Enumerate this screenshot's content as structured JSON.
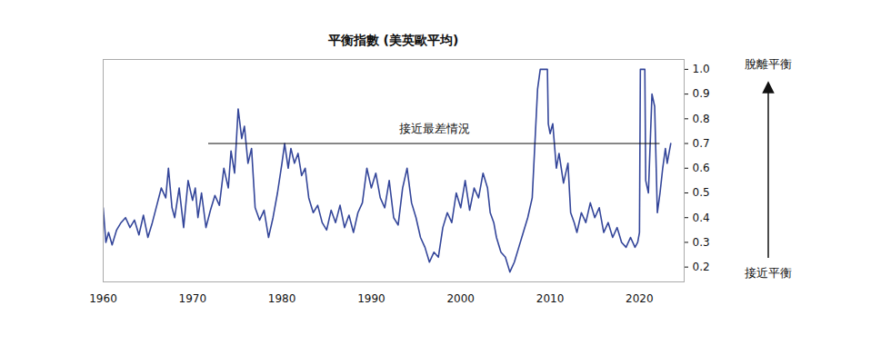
{
  "chart_data": {
    "type": "line",
    "title": "平衡指數 (美英歐平均)",
    "x": [
      1960,
      1960.3,
      1960.6,
      1961,
      1961.5,
      1962,
      1962.5,
      1963,
      1963.5,
      1964,
      1964.5,
      1965,
      1965.5,
      1966,
      1966.5,
      1967,
      1967.3,
      1967.7,
      1968,
      1968.5,
      1969,
      1969.5,
      1970,
      1970.3,
      1970.6,
      1971,
      1971.5,
      1972,
      1972.5,
      1973,
      1973.5,
      1974,
      1974.3,
      1974.7,
      1975.1,
      1975.5,
      1975.8,
      1976.2,
      1976.6,
      1977,
      1977.5,
      1978,
      1978.5,
      1979,
      1979.5,
      1980,
      1980.3,
      1980.7,
      1981,
      1981.4,
      1981.8,
      1982.2,
      1982.6,
      1983,
      1983.5,
      1984,
      1984.5,
      1985,
      1985.5,
      1986,
      1986.5,
      1987,
      1987.5,
      1988,
      1988.5,
      1989,
      1989.5,
      1990,
      1990.5,
      1991,
      1991.5,
      1992,
      1992.5,
      1993,
      1993.5,
      1994,
      1994.5,
      1995,
      1995.5,
      1996,
      1996.5,
      1997,
      1997.5,
      1998,
      1998.5,
      1999,
      1999.5,
      2000,
      2000.5,
      2001,
      2001.5,
      2002,
      2002.5,
      2003,
      2003.3,
      2003.7,
      2004,
      2004.5,
      2005,
      2005.5,
      2006,
      2006.5,
      2007,
      2007.5,
      2008,
      2008.3,
      2008.6,
      2008.9,
      2009.7,
      2009.8,
      2010,
      2010.3,
      2010.7,
      2011,
      2011.5,
      2012,
      2012.3,
      2012.7,
      2013,
      2013.5,
      2014,
      2014.5,
      2015,
      2015.5,
      2016,
      2016.5,
      2017,
      2017.5,
      2018,
      2018.5,
      2019,
      2019.5,
      2019.8,
      2020,
      2020.1,
      2020.6,
      2020.7,
      2021,
      2021.4,
      2021.7,
      2022,
      2022.3,
      2022.6,
      2022.9,
      2023.1,
      2023.3,
      2023.5
    ],
    "series": [
      {
        "name": "平衡指數",
        "color": "#34469a",
        "values": [
          0.44,
          0.3,
          0.34,
          0.29,
          0.35,
          0.38,
          0.4,
          0.36,
          0.39,
          0.33,
          0.41,
          0.32,
          0.38,
          0.45,
          0.52,
          0.48,
          0.6,
          0.44,
          0.4,
          0.52,
          0.36,
          0.55,
          0.47,
          0.52,
          0.4,
          0.5,
          0.36,
          0.43,
          0.49,
          0.45,
          0.6,
          0.52,
          0.67,
          0.58,
          0.84,
          0.72,
          0.77,
          0.62,
          0.68,
          0.44,
          0.39,
          0.43,
          0.32,
          0.4,
          0.5,
          0.62,
          0.7,
          0.6,
          0.68,
          0.62,
          0.66,
          0.57,
          0.6,
          0.48,
          0.42,
          0.45,
          0.38,
          0.35,
          0.43,
          0.38,
          0.45,
          0.36,
          0.41,
          0.34,
          0.42,
          0.46,
          0.6,
          0.52,
          0.58,
          0.48,
          0.44,
          0.55,
          0.4,
          0.37,
          0.52,
          0.6,
          0.46,
          0.4,
          0.32,
          0.28,
          0.22,
          0.26,
          0.24,
          0.36,
          0.42,
          0.38,
          0.5,
          0.44,
          0.55,
          0.43,
          0.52,
          0.48,
          0.58,
          0.52,
          0.42,
          0.38,
          0.32,
          0.26,
          0.24,
          0.18,
          0.22,
          0.28,
          0.34,
          0.4,
          0.48,
          0.7,
          0.92,
          1.0,
          1.0,
          0.78,
          0.74,
          0.78,
          0.6,
          0.66,
          0.54,
          0.62,
          0.42,
          0.38,
          0.34,
          0.42,
          0.38,
          0.46,
          0.4,
          0.44,
          0.34,
          0.38,
          0.32,
          0.36,
          0.3,
          0.28,
          0.32,
          0.28,
          0.3,
          0.34,
          1.0,
          1.0,
          0.55,
          0.5,
          0.9,
          0.85,
          0.42,
          0.5,
          0.6,
          0.68,
          0.62,
          0.66,
          0.7
        ]
      }
    ],
    "xlim": [
      1960,
      2025
    ],
    "xticks": [
      1960,
      1970,
      1980,
      1990,
      2000,
      2010,
      2020
    ],
    "ylim": [
      0.14,
      1.04
    ],
    "yticks": [
      0.2,
      0.3,
      0.4,
      0.5,
      0.6,
      0.7,
      0.8,
      0.9,
      {
        "value": 1,
        "label": "1.0"
      }
    ],
    "grid": false,
    "annotations": [
      {
        "text": "接近最差情況",
        "x": [
          1971.8,
          2022.3
        ],
        "y": 0.7
      }
    ],
    "direction_labels": {
      "top": "脫離平衡",
      "bottom": "接近平衡"
    }
  }
}
